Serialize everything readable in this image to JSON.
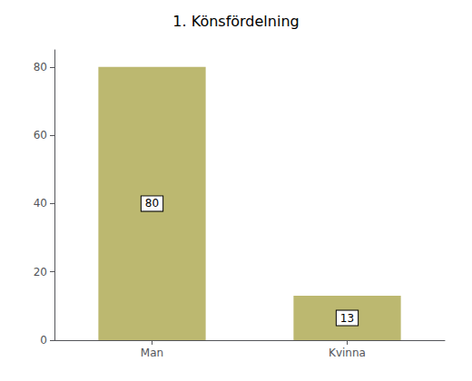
{
  "chart_data": {
    "type": "bar",
    "title": "1. Könsfördelning",
    "categories": [
      "Man",
      "Kvinna"
    ],
    "values": [
      80,
      13
    ],
    "color": "#bcb870",
    "ylim": [
      0,
      85
    ],
    "yticks": [
      0,
      20,
      40,
      60,
      80
    ],
    "grid": false,
    "data_labels": true
  }
}
